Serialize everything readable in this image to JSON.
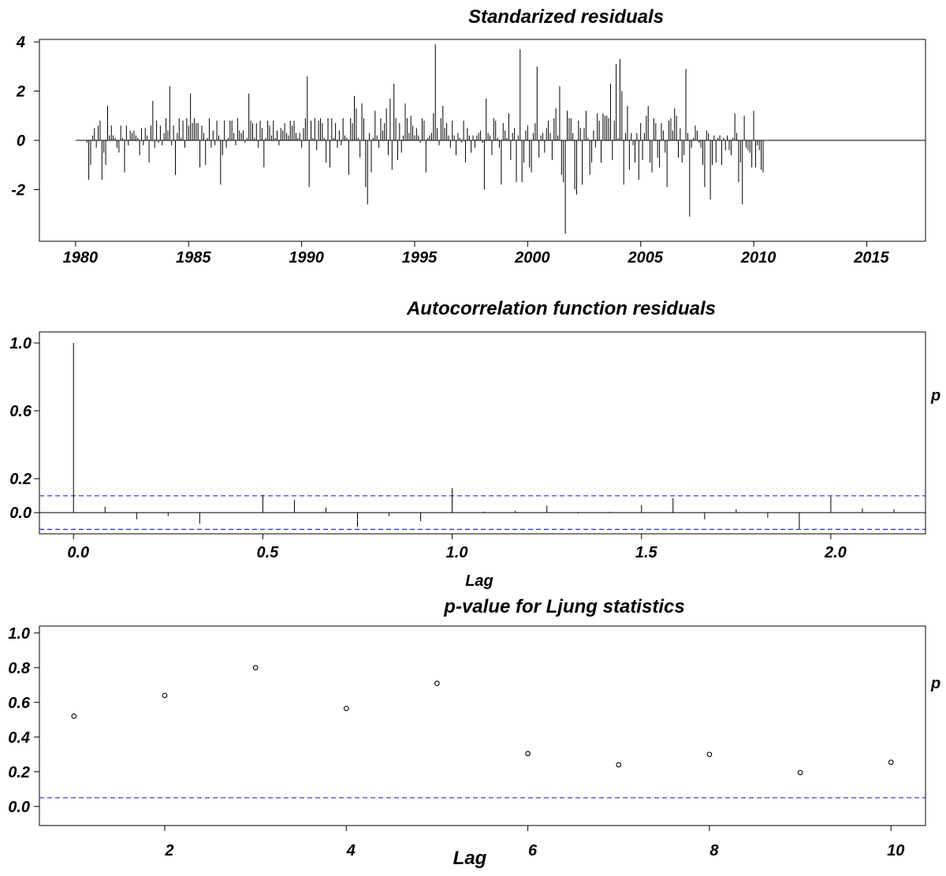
{
  "chart_data": [
    {
      "type": "bar",
      "title": "Standarized residuals",
      "xlabel": "",
      "ylabel": "",
      "x_ticks": [
        "1980",
        "1985",
        "1990",
        "1995",
        "2000",
        "2005",
        "2010",
        "2015"
      ],
      "x_tick_values": [
        1980,
        1985,
        1990,
        1995,
        2000,
        2005,
        2010,
        2015
      ],
      "y_ticks": [
        "4",
        "2",
        "0",
        "-2"
      ],
      "y_tick_values": [
        4,
        2,
        0,
        -2
      ],
      "xlim": [
        1978.4,
        2017.6
      ],
      "ylim": [
        -4.1,
        4.1
      ],
      "series": [
        {
          "start": 1980.0,
          "step": 0.08333,
          "values": [
            0.0,
            0.0,
            0.0,
            0.0,
            0.0,
            0.0,
            -0.1,
            -1.6,
            -1.0,
            0.2,
            0.5,
            -0.3,
            0.6,
            0.8,
            -1.6,
            -0.5,
            -1.0,
            1.4,
            0.2,
            0.6,
            0.2,
            0.1,
            -0.3,
            -0.5,
            0.6,
            0.1,
            -1.3,
            0.6,
            -0.2,
            0.4,
            0.3,
            0.4,
            0.2,
            0.1,
            -0.6,
            0.5,
            -0.2,
            0.5,
            0.2,
            -0.9,
            0.6,
            1.6,
            -0.3,
            0.8,
            -0.1,
            0.6,
            -0.2,
            0.3,
            0.9,
            0.4,
            2.2,
            -0.2,
            0.6,
            -1.4,
            0.3,
            0.9,
            0.1,
            0.8,
            -0.3,
            0.9,
            0.6,
            1.9,
            0.7,
            0.9,
            0.7,
            0.7,
            -1.1,
            0.6,
            0.3,
            -1.0,
            0.1,
            0.9,
            -0.3,
            0.4,
            -0.2,
            0.8,
            0.2,
            -1.8,
            -0.6,
            0.8,
            -0.3,
            0.1,
            0.8,
            0.8,
            0.3,
            -0.2,
            0.9,
            0.4,
            0.3,
            0.4,
            -0.1,
            0.1,
            1.9,
            0.8,
            0.7,
            0.1,
            0.7,
            -0.3,
            0.8,
            0.5,
            -1.1,
            0.1,
            0.8,
            0.6,
            0.2,
            0.8,
            0.1,
            0.4,
            -0.2,
            0.5,
            0.4,
            0.7,
            0.3,
            0.2,
            0.8,
            0.6,
            0.8,
            0.3,
            0.1,
            0.3,
            -0.3,
            0.5,
            0.9,
            2.6,
            -1.9,
            0.8,
            0.1,
            0.9,
            -0.4,
            0.8,
            0.9,
            0.7,
            0.1,
            -0.9,
            0.9,
            -1.1,
            0.9,
            0.1,
            0.7,
            -0.3,
            0.4,
            -0.2,
            0.9,
            0.2,
            0.1,
            -1.4,
            0.9,
            0.7,
            1.8,
            1.3,
            0.1,
            -0.7,
            1.5,
            0.9,
            -1.9,
            -2.6,
            0.3,
            -1.3,
            0.1,
            1.2,
            0.2,
            -0.3,
            0.9,
            0.4,
            0.7,
            1.3,
            -0.6,
            1.7,
            -1.2,
            2.3,
            0.9,
            -0.8,
            0.7,
            -0.5,
            0.2,
            1.5,
            0.9,
            0.3,
            1.0,
            0.6,
            0.2,
            0.5,
            0.2,
            -0.1,
            0.9,
            0.8,
            -1.3,
            0.1,
            0.2,
            0.3,
            1.1,
            3.9,
            0.5,
            -0.2,
            0.9,
            1.4,
            0.5,
            0.7,
            0.2,
            -0.3,
            0.8,
            0.2,
            -0.6,
            0.3,
            0.1,
            -0.1,
            0.8,
            -0.9,
            0.5,
            0.2,
            -0.5,
            0.2,
            -0.3,
            0.2,
            0.3,
            0.4,
            -0.1,
            -2.0,
            1.7,
            0.3,
            0.2,
            -0.6,
            0.9,
            0.8,
            0.1,
            -0.3,
            -1.8,
            0.7,
            0.4,
            0.1,
            1.1,
            -0.8,
            0.3,
            0.5,
            -1.7,
            0.2,
            3.7,
            -1.7,
            -0.9,
            0.4,
            0.6,
            -1.1,
            -1.3,
            0.3,
            0.7,
            3.0,
            -0.7,
            0.2,
            0.3,
            -0.5,
            0.5,
            0.8,
            0.3,
            -0.8,
            0.9,
            1.3,
            0.2,
            2.2,
            -1.4,
            -1.7,
            -3.8,
            1.2,
            0.9,
            0.9,
            0.3,
            -2.0,
            -2.2,
            0.8,
            0.5,
            -1.8,
            0.5,
            1.2,
            0.1,
            -1.4,
            -0.9,
            0.4,
            -0.3,
            1.1,
            0.8,
            -0.9,
            1.1,
            1.0,
            1.0,
            0.9,
            2.3,
            -0.8,
            0.8,
            3.1,
            0.1,
            3.3,
            2.0,
            -1.8,
            0.3,
            1.4,
            -1.2,
            0.3,
            -0.2,
            -0.9,
            0.3,
            -1.6,
            0.7,
            -0.8,
            0.3,
            1.0,
            1.4,
            -0.9,
            -1.3,
            0.9,
            0.7,
            -0.7,
            -1.1,
            0.7,
            0.4,
            -0.5,
            -1.9,
            0.8,
            0.9,
            0.4,
            1.3,
            1.0,
            -0.7,
            0.5,
            -0.9,
            -0.6,
            2.9,
            0.3,
            -3.1,
            -0.3,
            0.1,
            0.6,
            0.4,
            -0.1,
            -0.3,
            -1.0,
            -1.9,
            0.4,
            0.3,
            -2.4,
            -1.0,
            0.2,
            -0.9,
            0.1,
            0.2,
            -1.0,
            0.1,
            -0.4,
            0.2,
            -0.4,
            -0.6,
            0.1,
            1.1,
            0.3,
            -1.7,
            -0.9,
            -2.6,
            1.0,
            -0.3,
            -0.4,
            -0.5,
            -1.1,
            1.2,
            -1.1,
            -0.2,
            -0.4,
            -1.2,
            -1.3,
            0.0
          ]
        }
      ],
      "grid": false,
      "reference_lines": [
        0
      ]
    },
    {
      "type": "bar",
      "title": "Autocorrelation function residuals",
      "xlabel": "Lag",
      "ylabel": "p",
      "x_ticks": [
        "0.0",
        "0.5",
        "1.0",
        "1.5",
        "2.0"
      ],
      "x_tick_values": [
        0.0,
        0.5,
        1.0,
        1.5,
        2.0
      ],
      "y_ticks": [
        "1.0",
        "0.6",
        "0.2",
        "0.0"
      ],
      "y_tick_values": [
        1.0,
        0.6,
        0.2,
        0.0
      ],
      "xlim": [
        -0.09,
        2.25
      ],
      "ylim": [
        -0.125,
        1.065
      ],
      "series": [
        {
          "lags": [
            0.0,
            0.0833,
            0.1667,
            0.25,
            0.3333,
            0.4167,
            0.5,
            0.5833,
            0.6667,
            0.75,
            0.8333,
            0.9167,
            1.0,
            1.0833,
            1.1667,
            1.25,
            1.3333,
            1.4167,
            1.5,
            1.5833,
            1.6667,
            1.75,
            1.8333,
            1.9167,
            2.0,
            2.0833,
            2.1667
          ],
          "values": [
            1.0,
            0.035,
            -0.04,
            -0.02,
            -0.065,
            0.0,
            0.105,
            0.075,
            0.03,
            -0.085,
            -0.02,
            -0.05,
            0.145,
            0.005,
            0.01,
            0.04,
            -0.005,
            0.005,
            0.045,
            0.085,
            -0.04,
            0.02,
            -0.03,
            -0.095,
            0.095,
            0.025,
            0.02
          ]
        }
      ],
      "confidence_band": [
        0.099,
        -0.099
      ],
      "grid": false
    },
    {
      "type": "scatter",
      "title": "p-value for Ljung statistics",
      "xlabel": "Lag",
      "ylabel": "p",
      "x_ticks": [
        "2",
        "4",
        "6",
        "8",
        "10"
      ],
      "x_tick_values": [
        2,
        4,
        6,
        8,
        10
      ],
      "y_ticks": [
        "1.0",
        "0.8",
        "0.6",
        "0.4",
        "0.2",
        "0.0"
      ],
      "y_tick_values": [
        1.0,
        0.8,
        0.6,
        0.4,
        0.2,
        0.0
      ],
      "xlim": [
        0.62,
        10.38
      ],
      "ylim": [
        -0.11,
        1.04
      ],
      "series": [
        {
          "x": [
            1,
            2,
            3,
            4,
            5,
            6,
            7,
            8,
            9,
            10
          ],
          "y": [
            0.52,
            0.64,
            0.8,
            0.565,
            0.71,
            0.305,
            0.24,
            0.3,
            0.195,
            0.255
          ]
        }
      ],
      "reference_lines": [
        0.05
      ],
      "grid": false
    }
  ],
  "colors": {
    "axes": "#000000",
    "band": "#2b2bd8",
    "background": "#ffffff"
  }
}
